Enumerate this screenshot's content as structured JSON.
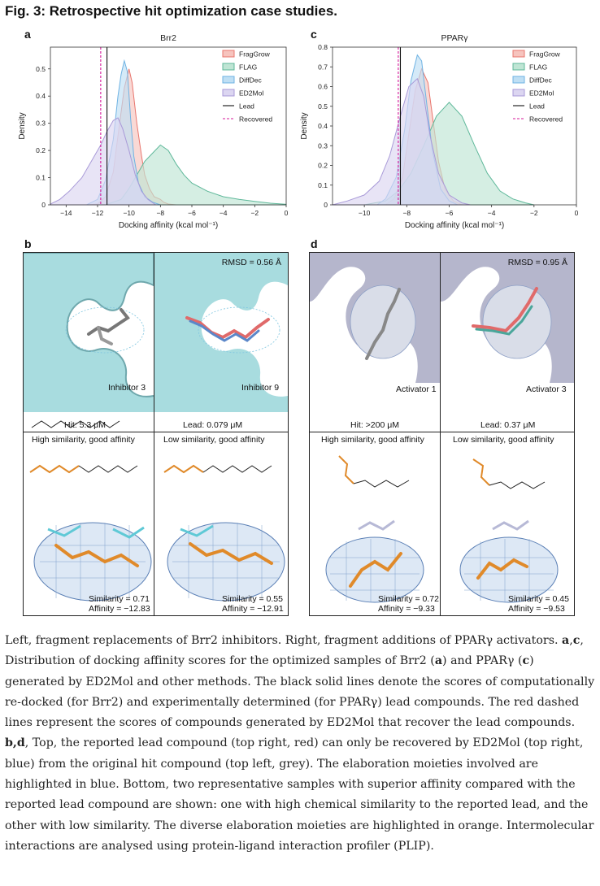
{
  "figure": {
    "title": "Fig. 3: Retrospective hit optimization case studies."
  },
  "panels": {
    "a": "a",
    "b": "b",
    "c": "c",
    "d": "d"
  },
  "chart_data": [
    {
      "type": "area",
      "panel": "a",
      "title": "Brr2",
      "xlabel": "Docking affinity (kcal mol⁻¹)",
      "ylabel": "Density",
      "xlim": [
        -15,
        0
      ],
      "ylim": [
        0,
        0.58
      ],
      "xticks": [
        -14,
        -12,
        -10,
        -8,
        -6,
        -4,
        -2,
        0
      ],
      "yticks": [
        0,
        0.1,
        0.2,
        0.3,
        0.4,
        0.5
      ],
      "legend_position": "top-right",
      "series": [
        {
          "name": "FragGrow",
          "color": "#e8766e",
          "fill": "#f6c4be",
          "points": [
            [
              -12.6,
              0
            ],
            [
              -12,
              0.003
            ],
            [
              -11.5,
              0.03
            ],
            [
              -11,
              0.12
            ],
            [
              -10.6,
              0.3
            ],
            [
              -10.3,
              0.43
            ],
            [
              -10,
              0.5
            ],
            [
              -9.8,
              0.45
            ],
            [
              -9.5,
              0.3
            ],
            [
              -9.2,
              0.18
            ],
            [
              -9,
              0.11
            ],
            [
              -8.7,
              0.06
            ],
            [
              -8.4,
              0.03
            ],
            [
              -8,
              0.02
            ],
            [
              -7.8,
              0.01
            ],
            [
              -7.5,
              0.003
            ],
            [
              -7,
              0
            ]
          ]
        },
        {
          "name": "FLAG",
          "color": "#5fb89a",
          "fill": "#bfe5d4",
          "points": [
            [
              -11.5,
              0
            ],
            [
              -10.5,
              0.02
            ],
            [
              -10,
              0.06
            ],
            [
              -9.5,
              0.11
            ],
            [
              -9,
              0.16
            ],
            [
              -8.5,
              0.19
            ],
            [
              -8,
              0.22
            ],
            [
              -7.5,
              0.2
            ],
            [
              -7,
              0.15
            ],
            [
              -6.5,
              0.11
            ],
            [
              -6,
              0.08
            ],
            [
              -5,
              0.05
            ],
            [
              -4,
              0.03
            ],
            [
              -3,
              0.02
            ],
            [
              -2,
              0.013
            ],
            [
              -1,
              0.006
            ],
            [
              0,
              0.002
            ]
          ]
        },
        {
          "name": "DiffDec",
          "color": "#6fb3e3",
          "fill": "#bfdff4",
          "points": [
            [
              -12.7,
              0
            ],
            [
              -12,
              0.02
            ],
            [
              -11.5,
              0.09
            ],
            [
              -11,
              0.24
            ],
            [
              -10.7,
              0.4
            ],
            [
              -10.5,
              0.48
            ],
            [
              -10.3,
              0.53
            ],
            [
              -10.1,
              0.49
            ],
            [
              -9.9,
              0.32
            ],
            [
              -9.7,
              0.18
            ],
            [
              -9.4,
              0.08
            ],
            [
              -9,
              0.03
            ],
            [
              -8.5,
              0.01
            ],
            [
              -8,
              0
            ]
          ]
        },
        {
          "name": "ED2Mol",
          "color": "#a99ad8",
          "fill": "#dcd6f1",
          "points": [
            [
              -15,
              0.003
            ],
            [
              -14.4,
              0.02
            ],
            [
              -13.8,
              0.05
            ],
            [
              -13,
              0.1
            ],
            [
              -12.4,
              0.16
            ],
            [
              -11.8,
              0.22
            ],
            [
              -11.4,
              0.27
            ],
            [
              -11,
              0.31
            ],
            [
              -10.7,
              0.32
            ],
            [
              -10.4,
              0.28
            ],
            [
              -10,
              0.2
            ],
            [
              -9.6,
              0.11
            ],
            [
              -9.2,
              0.05
            ],
            [
              -8.8,
              0.02
            ],
            [
              -8.3,
              0
            ]
          ]
        }
      ],
      "lead": -11.4,
      "recovered": -11.8,
      "lead_label": "Lead",
      "recovered_label": "Recovered"
    },
    {
      "type": "area",
      "panel": "c",
      "title": "PPARγ",
      "xlabel": "Docking affinity (kcal mol⁻¹)",
      "ylabel": "Density",
      "xlim": [
        -11.5,
        0
      ],
      "ylim": [
        0,
        0.8
      ],
      "xticks": [
        -10,
        -8,
        -6,
        -4,
        -2,
        0
      ],
      "yticks": [
        0,
        0.1,
        0.2,
        0.3,
        0.4,
        0.5,
        0.6,
        0.7,
        0.8
      ],
      "legend_position": "top-right",
      "series": [
        {
          "name": "FragGrow",
          "color": "#e8766e",
          "fill": "#f6c4be",
          "points": [
            [
              -9,
              0
            ],
            [
              -8.6,
              0.03
            ],
            [
              -8.2,
              0.14
            ],
            [
              -7.9,
              0.36
            ],
            [
              -7.6,
              0.58
            ],
            [
              -7.3,
              0.69
            ],
            [
              -7,
              0.62
            ],
            [
              -6.8,
              0.46
            ],
            [
              -6.5,
              0.22
            ],
            [
              -6.2,
              0.08
            ],
            [
              -5.8,
              0.02
            ],
            [
              -5.4,
              0
            ]
          ]
        },
        {
          "name": "FLAG",
          "color": "#5fb89a",
          "fill": "#bfe5d4",
          "points": [
            [
              -10,
              0
            ],
            [
              -9,
              0.02
            ],
            [
              -8.4,
              0.07
            ],
            [
              -7.8,
              0.16
            ],
            [
              -7.2,
              0.3
            ],
            [
              -6.6,
              0.45
            ],
            [
              -6,
              0.52
            ],
            [
              -5.4,
              0.45
            ],
            [
              -4.8,
              0.3
            ],
            [
              -4.2,
              0.16
            ],
            [
              -3.6,
              0.07
            ],
            [
              -3,
              0.03
            ],
            [
              -2.4,
              0.01
            ],
            [
              -2,
              0
            ]
          ]
        },
        {
          "name": "DiffDec",
          "color": "#6fb3e3",
          "fill": "#bfdff4",
          "points": [
            [
              -9.4,
              0
            ],
            [
              -9,
              0.03
            ],
            [
              -8.5,
              0.14
            ],
            [
              -8.1,
              0.38
            ],
            [
              -7.8,
              0.63
            ],
            [
              -7.5,
              0.76
            ],
            [
              -7.3,
              0.73
            ],
            [
              -7.1,
              0.55
            ],
            [
              -6.8,
              0.28
            ],
            [
              -6.4,
              0.08
            ],
            [
              -6,
              0.02
            ],
            [
              -5.6,
              0
            ]
          ]
        },
        {
          "name": "ED2Mol",
          "color": "#a99ad8",
          "fill": "#dcd6f1",
          "points": [
            [
              -11.5,
              0
            ],
            [
              -10.8,
              0.02
            ],
            [
              -10,
              0.05
            ],
            [
              -9.3,
              0.12
            ],
            [
              -8.8,
              0.25
            ],
            [
              -8.3,
              0.45
            ],
            [
              -7.9,
              0.6
            ],
            [
              -7.5,
              0.64
            ],
            [
              -7.2,
              0.55
            ],
            [
              -6.9,
              0.35
            ],
            [
              -6.5,
              0.16
            ],
            [
              -6,
              0.05
            ],
            [
              -5.4,
              0.01
            ],
            [
              -5,
              0
            ]
          ]
        }
      ],
      "lead": -8.3,
      "recovered": -8.4,
      "lead_label": "Lead",
      "recovered_label": "Recovered"
    }
  ],
  "structures": {
    "b": {
      "rmsd": "RMSD = 0.56 Å",
      "hit_name": "Inhibitor 3",
      "lead_name": "Inhibitor 9",
      "hit_value": "Hit: 5.3 μM",
      "lead_value": "Lead: 0.079 μM",
      "sample1_title": "High similarity, good affinity",
      "sample2_title": "Low similarity, good affinity",
      "sample1_similarity": "Similarity = 0.71",
      "sample1_affinity": "Affinity = −12.83",
      "sample2_similarity": "Similarity = 0.55",
      "sample2_affinity": "Affinity = −12.91"
    },
    "d": {
      "rmsd": "RMSD = 0.95 Å",
      "hit_name": "Activator 1",
      "lead_name": "Activator 3",
      "hit_value": "Hit: >200 μM",
      "lead_value": "Lead: 0.37 μM",
      "sample1_title": "High similarity, good affinity",
      "sample2_title": "Low similarity, good affinity",
      "sample1_similarity": "Similarity = 0.72",
      "sample1_affinity": "Affinity = −9.33",
      "sample2_similarity": "Similarity = 0.45",
      "sample2_affinity": "Affinity = −9.53"
    }
  },
  "caption": {
    "p1": "Left, fragment replacements of Brr2 inhibitors. Right, fragment additions of PPARγ activators. ",
    "ac_bold": "a",
    "ac_comma": ",",
    "c_bold": "c",
    "p2": ", Distribution of docking affinity scores for the optimized samples of Brr2 (",
    "a_bold": "a",
    "p3": ") and PPARγ (",
    "c2_bold": "c",
    "p4": ") generated by ED2Mol and other methods. The black solid lines denote the scores of computationally re-docked (for Brr2) and experimentally determined (for PPARγ) lead compounds. The red dashed lines represent the scores of compounds generated by ED2Mol that recover the lead compounds. ",
    "bd_bold": "b,d",
    "p5": ", Top, the reported lead compound (top right, red) can only be recovered by ED2Mol (top right, blue) from the original hit compound (top left, grey). The elaboration moieties involved are highlighted in blue. Bottom, two representative samples with superior affinity compared with the reported lead compound are shown: one with high chemical similarity to the reported lead, and the other with low similarity. The diverse elaboration moieties are highlighted in orange. Intermolecular interactions are analysed using protein-ligand interaction profiler (PLIP)."
  }
}
